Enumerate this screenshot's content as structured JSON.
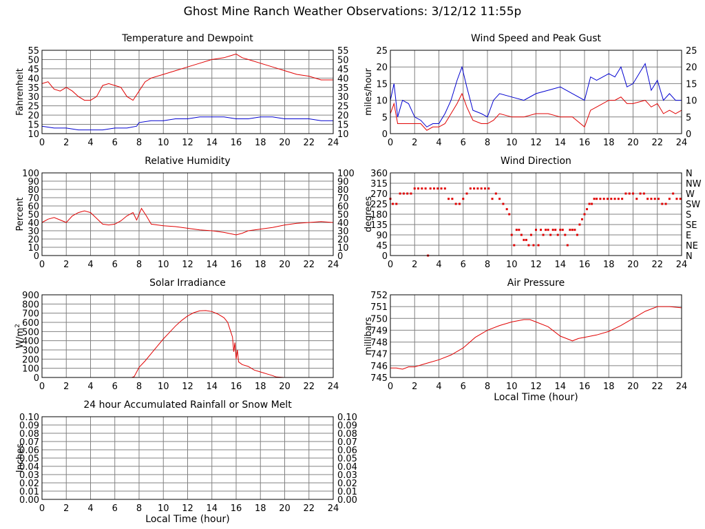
{
  "page_title": "Ghost Mine Ranch Weather Observations: 3/12/12 11:55p",
  "colors": {
    "series_red": "#e00000",
    "series_blue": "#0000d0",
    "grid": "#808080",
    "frame": "#000000"
  },
  "chart_data": [
    {
      "id": "temp",
      "type": "line",
      "title": "Temperature and Dewpoint",
      "xlabel": "",
      "ylabel": "Fahrenheit",
      "xlim": [
        0,
        24
      ],
      "ylim": [
        10,
        55
      ],
      "xticks": [
        0,
        2,
        4,
        6,
        8,
        10,
        12,
        14,
        16,
        18,
        20,
        22,
        24
      ],
      "yticks": [
        10,
        15,
        20,
        25,
        30,
        35,
        40,
        45,
        50,
        55
      ],
      "right_axis_ticks": [
        10,
        15,
        20,
        25,
        30,
        35,
        40,
        45,
        50,
        55
      ],
      "grid": true,
      "series": [
        {
          "color": "#e00000",
          "x": [
            0,
            0.5,
            1,
            1.5,
            2,
            2.5,
            3,
            3.5,
            4,
            4.5,
            5,
            5.5,
            6,
            6.5,
            7,
            7.5,
            8,
            8.5,
            9,
            10,
            11,
            12,
            13,
            14,
            15,
            15.5,
            16,
            16.5,
            17,
            18,
            19,
            20,
            21,
            22,
            23,
            24
          ],
          "y": [
            37,
            38,
            34,
            33,
            35,
            33,
            30,
            28,
            28,
            30,
            36,
            37,
            36,
            35,
            30,
            28,
            33,
            38,
            40,
            42,
            44,
            46,
            48,
            50,
            51,
            52,
            53,
            51,
            50,
            48,
            46,
            44,
            42,
            41,
            39,
            39
          ]
        },
        {
          "color": "#0000d0",
          "x": [
            0,
            1,
            2,
            3,
            4,
            5,
            6,
            7,
            7.8,
            8,
            9,
            10,
            11,
            12,
            13,
            14,
            15,
            16,
            17,
            18,
            19,
            20,
            21,
            22,
            23,
            24
          ],
          "y": [
            14,
            13,
            13,
            12,
            12,
            12,
            13,
            13,
            14,
            16,
            17,
            17,
            18,
            18,
            19,
            19,
            19,
            18,
            18,
            19,
            19,
            18,
            18,
            18,
            17,
            17
          ]
        }
      ]
    },
    {
      "id": "wind",
      "type": "line",
      "title": "Wind Speed and Peak Gust",
      "xlabel": "",
      "ylabel": "miles/hour",
      "xlim": [
        0,
        24
      ],
      "ylim": [
        0,
        25
      ],
      "xticks": [
        0,
        2,
        4,
        6,
        8,
        10,
        12,
        14,
        16,
        18,
        20,
        22,
        24
      ],
      "yticks": [
        0,
        5,
        10,
        15,
        20,
        25
      ],
      "right_axis_ticks": [
        0,
        5,
        10,
        15,
        20,
        25
      ],
      "grid": true,
      "series": [
        {
          "color": "#0000d0",
          "x": [
            0,
            0.3,
            0.6,
            1,
            1.5,
            2,
            2.5,
            3,
            3.5,
            4,
            4.5,
            5,
            5.5,
            5.9,
            6.3,
            6.8,
            7.5,
            8,
            8.5,
            9,
            10,
            11,
            12,
            13,
            14,
            15,
            16,
            16.5,
            17,
            18,
            18.5,
            19,
            19.5,
            20,
            21,
            21.5,
            22,
            22.5,
            23,
            23.5,
            24
          ],
          "y": [
            10,
            15,
            5,
            10,
            9,
            5,
            4,
            2,
            3,
            3,
            6,
            10,
            16,
            20,
            14,
            7,
            6,
            5,
            10,
            12,
            11,
            10,
            12,
            13,
            14,
            12,
            10,
            17,
            16,
            18,
            17,
            20,
            14,
            15,
            21,
            13,
            16,
            10,
            12,
            10,
            10
          ]
        },
        {
          "color": "#e00000",
          "x": [
            0,
            0.3,
            0.6,
            1,
            1.5,
            2,
            2.5,
            3,
            3.5,
            4,
            4.5,
            5,
            5.5,
            5.9,
            6.3,
            6.8,
            7.5,
            8,
            8.5,
            9,
            10,
            11,
            12,
            13,
            14,
            15,
            16,
            16.5,
            17,
            18,
            18.5,
            19,
            19.5,
            20,
            21,
            21.5,
            22,
            22.5,
            23,
            23.5,
            24
          ],
          "y": [
            6,
            9,
            3,
            3,
            3,
            3,
            3,
            1,
            2,
            2,
            3,
            6,
            9,
            12,
            8,
            4,
            3,
            3,
            4,
            6,
            5,
            5,
            6,
            6,
            5,
            5,
            2,
            7,
            8,
            10,
            10,
            11,
            9,
            9,
            10,
            8,
            9,
            6,
            7,
            6,
            7
          ]
        }
      ]
    },
    {
      "id": "rh",
      "type": "line",
      "title": "Relative Humidity",
      "xlabel": "",
      "ylabel": "Percent",
      "xlim": [
        0,
        24
      ],
      "ylim": [
        0,
        100
      ],
      "xticks": [
        0,
        2,
        4,
        6,
        8,
        10,
        12,
        14,
        16,
        18,
        20,
        22,
        24
      ],
      "yticks": [
        0,
        10,
        20,
        30,
        40,
        50,
        60,
        70,
        80,
        90,
        100
      ],
      "right_axis_ticks": [
        0,
        10,
        20,
        30,
        40,
        50,
        60,
        70,
        80,
        90,
        100
      ],
      "grid": true,
      "series": [
        {
          "color": "#e00000",
          "x": [
            0,
            0.5,
            1,
            1.5,
            2,
            2.5,
            3,
            3.5,
            4,
            4.5,
            5,
            5.5,
            6,
            6.5,
            7,
            7.5,
            7.8,
            8.2,
            8.6,
            9,
            10,
            11,
            12,
            13,
            14,
            15,
            16,
            16.5,
            17,
            18,
            19,
            20,
            21,
            22,
            23,
            24
          ],
          "y": [
            40,
            44,
            46,
            43,
            40,
            48,
            52,
            54,
            52,
            45,
            38,
            37,
            38,
            42,
            48,
            52,
            43,
            57,
            48,
            38,
            36,
            35,
            33,
            31,
            30,
            28,
            25,
            27,
            30,
            32,
            34,
            37,
            39,
            40,
            41,
            40
          ]
        }
      ]
    },
    {
      "id": "winddir",
      "type": "scatter",
      "title": "Wind Direction",
      "xlabel": "",
      "ylabel": "degrees",
      "xlim": [
        0,
        24
      ],
      "ylim": [
        0,
        360
      ],
      "xticks": [
        0,
        2,
        4,
        6,
        8,
        10,
        12,
        14,
        16,
        18,
        20,
        22,
        24
      ],
      "yticks": [
        0,
        45,
        90,
        135,
        180,
        225,
        270,
        315,
        360
      ],
      "right_axis_ticks": [
        "N",
        "NE",
        "E",
        "SE",
        "S",
        "SW",
        "W",
        "NW",
        "N"
      ],
      "grid": true,
      "series": [
        {
          "color": "#e00000",
          "x": [
            0,
            0.2,
            0.5,
            0.8,
            1.1,
            1.4,
            1.7,
            2.0,
            2.3,
            2.6,
            2.9,
            3.1,
            3.3,
            3.6,
            3.9,
            4.2,
            4.5,
            4.8,
            5.1,
            5.4,
            5.7,
            6.0,
            6.3,
            6.6,
            6.9,
            7.2,
            7.5,
            7.8,
            8.1,
            8.4,
            8.7,
            9.0,
            9.3,
            9.6,
            9.8,
            10.0,
            10.2,
            10.4,
            10.6,
            10.8,
            11.0,
            11.2,
            11.4,
            11.6,
            11.8,
            12.0,
            12.2,
            12.4,
            12.6,
            12.8,
            13.0,
            13.2,
            13.4,
            13.6,
            13.8,
            14.0,
            14.2,
            14.4,
            14.6,
            14.8,
            15.0,
            15.2,
            15.4,
            15.6,
            15.8,
            16.0,
            16.2,
            16.4,
            16.6,
            16.8,
            17.0,
            17.3,
            17.6,
            17.9,
            18.2,
            18.5,
            18.8,
            19.1,
            19.4,
            19.7,
            20.0,
            20.3,
            20.6,
            20.9,
            21.2,
            21.5,
            21.8,
            22.1,
            22.4,
            22.7,
            23.0,
            23.3,
            23.6,
            23.9
          ],
          "y": [
            247,
            225,
            225,
            270,
            270,
            270,
            270,
            292,
            292,
            292,
            292,
            0,
            292,
            292,
            292,
            292,
            292,
            247,
            247,
            225,
            225,
            247,
            270,
            292,
            292,
            292,
            292,
            292,
            292,
            247,
            270,
            247,
            225,
            202,
            180,
            90,
            45,
            112,
            112,
            90,
            68,
            68,
            45,
            90,
            45,
            112,
            45,
            112,
            90,
            112,
            112,
            90,
            112,
            112,
            90,
            112,
            112,
            90,
            45,
            112,
            112,
            112,
            90,
            135,
            158,
            180,
            202,
            225,
            225,
            247,
            247,
            247,
            247,
            247,
            247,
            247,
            247,
            247,
            270,
            270,
            270,
            247,
            270,
            270,
            247,
            247,
            247,
            247,
            225,
            225,
            247,
            270,
            247,
            247
          ]
        }
      ]
    },
    {
      "id": "solar",
      "type": "line",
      "title": "Solar Irradiance",
      "xlabel": "",
      "ylabel": "W/m2",
      "xlim": [
        0,
        24
      ],
      "ylim": [
        0,
        900
      ],
      "xticks": [
        0,
        2,
        4,
        6,
        8,
        10,
        12,
        14,
        16,
        18,
        20,
        22,
        24
      ],
      "yticks": [
        0,
        100,
        200,
        300,
        400,
        500,
        600,
        700,
        800,
        900
      ],
      "grid": true,
      "series": [
        {
          "color": "#e00000",
          "x": [
            0,
            6,
            7.4,
            7.6,
            7.8,
            8,
            8.5,
            9,
            9.5,
            10,
            10.5,
            11,
            11.5,
            12,
            12.5,
            13,
            13.5,
            14,
            14.5,
            15,
            15.3,
            15.5,
            15.7,
            15.8,
            15.9,
            16,
            16.1,
            16.2,
            16.5,
            17,
            17.5,
            18,
            18.5,
            19,
            19.3,
            20,
            24
          ],
          "y": [
            0,
            0,
            0,
            10,
            60,
            110,
            180,
            260,
            340,
            420,
            490,
            560,
            620,
            670,
            705,
            725,
            728,
            718,
            690,
            650,
            600,
            520,
            440,
            280,
            380,
            200,
            300,
            170,
            140,
            120,
            80,
            60,
            40,
            20,
            5,
            0,
            0
          ]
        }
      ]
    },
    {
      "id": "pressure",
      "type": "line",
      "title": "Air Pressure",
      "xlabel": "Local Time (hour)",
      "ylabel": "millibars",
      "xlim": [
        0,
        24
      ],
      "ylim": [
        745,
        752
      ],
      "xticks": [
        0,
        2,
        4,
        6,
        8,
        10,
        12,
        14,
        16,
        18,
        20,
        22,
        24
      ],
      "yticks": [
        745,
        746,
        747,
        748,
        749,
        750,
        751,
        752
      ],
      "grid": true,
      "series": [
        {
          "color": "#e00000",
          "x": [
            0,
            0.5,
            1,
            1.5,
            2,
            3,
            4,
            5,
            6,
            7,
            8,
            9,
            10,
            11,
            11.5,
            12,
            13,
            14,
            14.5,
            15,
            15.5,
            16,
            17,
            18,
            19,
            20,
            21,
            22,
            23,
            24
          ],
          "y": [
            745.8,
            745.8,
            745.7,
            745.9,
            745.9,
            746.2,
            746.5,
            746.9,
            747.5,
            748.4,
            749.0,
            749.4,
            749.7,
            749.9,
            749.9,
            749.7,
            749.3,
            748.5,
            748.3,
            748.1,
            748.3,
            748.4,
            748.6,
            748.9,
            749.4,
            750.0,
            750.6,
            751.0,
            751.0,
            750.9
          ]
        }
      ]
    },
    {
      "id": "rain",
      "type": "line",
      "title": "24 hour Accumulated Rainfall or Snow Melt",
      "xlabel": "Local Time (hour)",
      "ylabel": "Inches",
      "xlim": [
        0,
        24
      ],
      "ylim": [
        0,
        0.1
      ],
      "xticks": [
        0,
        2,
        4,
        6,
        8,
        10,
        12,
        14,
        16,
        18,
        20,
        22,
        24
      ],
      "yticks": [
        "0.00",
        "0.01",
        "0.02",
        "0.03",
        "0.04",
        "0.05",
        "0.06",
        "0.07",
        "0.08",
        "0.09",
        "0.10"
      ],
      "right_axis_ticks": [
        "0.00",
        "0.01",
        "0.02",
        "0.03",
        "0.04",
        "0.05",
        "0.06",
        "0.07",
        "0.08",
        "0.09",
        "0.10"
      ],
      "grid": true,
      "series": [
        {
          "color": "#e00000",
          "x": [
            0,
            24
          ],
          "y": [
            0,
            0
          ]
        }
      ]
    }
  ]
}
